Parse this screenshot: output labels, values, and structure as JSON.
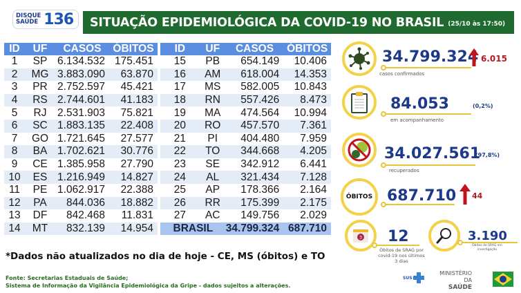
{
  "header": {
    "logo_line1": "DISQUE",
    "logo_line2": "SAÚDE",
    "logo_number": "136",
    "title": "SITUAÇÃO EPIDEMIOLÓGICA DA COVID-19 NO BRASIL",
    "datetime": "(25/10 às 17:50)"
  },
  "table": {
    "columns": [
      "ID",
      "UF",
      "CASOS",
      "ÓBITOS"
    ],
    "left_rows": [
      {
        "id": "1",
        "uf": "SP",
        "casos": "6.134.532",
        "obitos": "175.451"
      },
      {
        "id": "2",
        "uf": "MG",
        "casos": "3.883.090",
        "obitos": "63.870"
      },
      {
        "id": "3",
        "uf": "PR",
        "casos": "2.752.597",
        "obitos": "45.421"
      },
      {
        "id": "4",
        "uf": "RS",
        "casos": "2.744.601",
        "obitos": "41.183"
      },
      {
        "id": "5",
        "uf": "RJ",
        "casos": "2.531.903",
        "obitos": "75.821"
      },
      {
        "id": "6",
        "uf": "SC",
        "casos": "1.883.135",
        "obitos": "22.408"
      },
      {
        "id": "7",
        "uf": "GO",
        "casos": "1.721.645",
        "obitos": "27.577"
      },
      {
        "id": "8",
        "uf": "BA",
        "casos": "1.702.621",
        "obitos": "30.776"
      },
      {
        "id": "9",
        "uf": "CE",
        "casos": "1.385.958",
        "obitos": "27.790"
      },
      {
        "id": "10",
        "uf": "ES",
        "casos": "1.216.949",
        "obitos": "14.827"
      },
      {
        "id": "11",
        "uf": "PE",
        "casos": "1.062.917",
        "obitos": "22.388"
      },
      {
        "id": "12",
        "uf": "PA",
        "casos": "844.036",
        "obitos": "18.882"
      },
      {
        "id": "13",
        "uf": "DF",
        "casos": "842.468",
        "obitos": "11.831"
      },
      {
        "id": "14",
        "uf": "MT",
        "casos": "832.139",
        "obitos": "14.954"
      }
    ],
    "right_rows": [
      {
        "id": "15",
        "uf": "PB",
        "casos": "654.149",
        "obitos": "10.406"
      },
      {
        "id": "16",
        "uf": "AM",
        "casos": "618.004",
        "obitos": "14.353"
      },
      {
        "id": "17",
        "uf": "MS",
        "casos": "582.005",
        "obitos": "10.843"
      },
      {
        "id": "18",
        "uf": "RN",
        "casos": "557.426",
        "obitos": "8.473"
      },
      {
        "id": "19",
        "uf": "MA",
        "casos": "474.564",
        "obitos": "10.994"
      },
      {
        "id": "20",
        "uf": "RO",
        "casos": "457.570",
        "obitos": "7.361"
      },
      {
        "id": "21",
        "uf": "PI",
        "casos": "404.480",
        "obitos": "7.959"
      },
      {
        "id": "22",
        "uf": "TO",
        "casos": "344.668",
        "obitos": "4.205"
      },
      {
        "id": "23",
        "uf": "SE",
        "casos": "342.912",
        "obitos": "6.441"
      },
      {
        "id": "24",
        "uf": "AL",
        "casos": "321.434",
        "obitos": "7.128"
      },
      {
        "id": "25",
        "uf": "AP",
        "casos": "178.366",
        "obitos": "2.164"
      },
      {
        "id": "26",
        "uf": "RR",
        "casos": "175.399",
        "obitos": "2.175"
      },
      {
        "id": "27",
        "uf": "AC",
        "casos": "149.756",
        "obitos": "2.029"
      }
    ],
    "total": {
      "label": "BRASIL",
      "casos": "34.799.324",
      "obitos": "687.710"
    }
  },
  "note": "*Dados não atualizados no dia de hoje - CE, MS (óbitos) e TO",
  "source": {
    "line1": "Fonte: Secretarias Estaduais de Saúde;",
    "line2": "Sistema de Informação da Vigilância Epidemiológica da Gripe - dados sujeitos a alterações."
  },
  "stats": {
    "confirmed": {
      "value": "34.799.324",
      "delta": "6.015",
      "label": "casos confirmados",
      "icon": "virus-icon"
    },
    "monitoring": {
      "value": "84.053",
      "pct": "(0,2%)",
      "label": "em acompanhamento",
      "icon": "clipboard-icon"
    },
    "recovered": {
      "value": "34.027.561",
      "pct": "(97,8%)",
      "label": "recuperados",
      "icon": "no-virus-icon"
    },
    "deaths": {
      "badge": "ÓBITOS",
      "value": "687.710",
      "delta": "44"
    },
    "srag": {
      "value": "12",
      "calendar_day": "3",
      "label_line1": "Óbitos de SRAG por",
      "label_line2": "covid-19 nos últimos",
      "label_line3": "3 dias",
      "icon": "calendar-icon"
    },
    "investigation": {
      "value": "3.190",
      "label_line1": "Óbitos de SRAG em",
      "label_line2": "investigação",
      "icon": "magnifier-icon"
    }
  },
  "footer": {
    "sus": "SUS",
    "ministry_line1": "MINISTÉRIO DA",
    "ministry_line2": "SAÚDE"
  },
  "colors": {
    "title_green": "#1e6a2f",
    "table_header_blue": "#5b8ee0",
    "row_alt": "#e4ecf8",
    "total_row": "#a9c4ef",
    "stat_blue": "#1d3a8a",
    "delta_red": "#b51a22",
    "ring_yellow": "#f3d24a"
  }
}
